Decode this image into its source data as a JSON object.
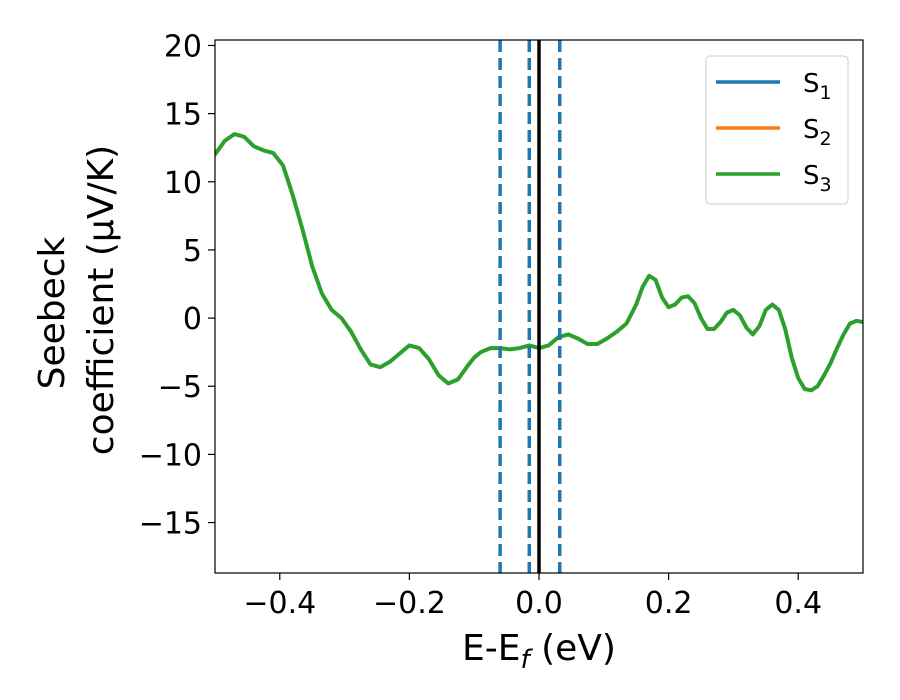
{
  "chart_data": {
    "type": "line",
    "xlabel": "E-E_f (eV)",
    "xlabel_main": "E-E",
    "xlabel_sub": "f",
    "xlabel_unit": " (eV)",
    "ylabel_line1": "Seebeck",
    "ylabel_line2": "coefficient  (μV/K)",
    "xlim": [
      -0.5,
      0.5
    ],
    "ylim": [
      -18.7,
      20.4
    ],
    "xticks": [
      -0.4,
      -0.2,
      0.0,
      0.2,
      0.4
    ],
    "xtick_labels": [
      "−0.4",
      "−0.2",
      "0.0",
      "0.2",
      "0.4"
    ],
    "yticks": [
      -15,
      -10,
      -5,
      0,
      5,
      10,
      15,
      20
    ],
    "ytick_labels": [
      "−15",
      "−10",
      "−5",
      "0",
      "5",
      "10",
      "15",
      "20"
    ],
    "grid": false,
    "legend_position": "top-right",
    "series": [
      {
        "name": "S1",
        "name_main": "S",
        "name_sub": "1",
        "color": "#1f77b4",
        "x": [],
        "y": []
      },
      {
        "name": "S2",
        "name_main": "S",
        "name_sub": "2",
        "color": "#ff7f0e",
        "x": [],
        "y": []
      },
      {
        "name": "S3",
        "name_main": "S",
        "name_sub": "3",
        "color": "#2ca02c",
        "x": [
          -0.5,
          -0.485,
          -0.47,
          -0.455,
          -0.44,
          -0.425,
          -0.41,
          -0.395,
          -0.38,
          -0.365,
          -0.35,
          -0.335,
          -0.32,
          -0.305,
          -0.29,
          -0.275,
          -0.26,
          -0.245,
          -0.23,
          -0.215,
          -0.2,
          -0.185,
          -0.17,
          -0.155,
          -0.14,
          -0.125,
          -0.11,
          -0.1,
          -0.09,
          -0.075,
          -0.06,
          -0.045,
          -0.03,
          -0.015,
          0.0,
          0.015,
          0.03,
          0.045,
          0.06,
          0.075,
          0.09,
          0.105,
          0.12,
          0.135,
          0.15,
          0.16,
          0.17,
          0.18,
          0.19,
          0.2,
          0.21,
          0.22,
          0.23,
          0.24,
          0.25,
          0.26,
          0.27,
          0.28,
          0.29,
          0.3,
          0.31,
          0.32,
          0.33,
          0.34,
          0.35,
          0.36,
          0.37,
          0.38,
          0.39,
          0.4,
          0.41,
          0.42,
          0.43,
          0.44,
          0.45,
          0.46,
          0.47,
          0.48,
          0.49,
          0.5
        ],
        "y": [
          12.0,
          13.0,
          13.5,
          13.3,
          12.6,
          12.3,
          12.1,
          11.2,
          9.0,
          6.5,
          3.8,
          1.8,
          0.6,
          0.0,
          -1.0,
          -2.3,
          -3.4,
          -3.6,
          -3.2,
          -2.6,
          -2.0,
          -2.2,
          -3.0,
          -4.2,
          -4.8,
          -4.5,
          -3.5,
          -2.9,
          -2.5,
          -2.2,
          -2.2,
          -2.3,
          -2.2,
          -2.0,
          -2.2,
          -2.0,
          -1.4,
          -1.2,
          -1.5,
          -1.9,
          -1.9,
          -1.5,
          -1.0,
          -0.4,
          1.0,
          2.3,
          3.1,
          2.8,
          1.5,
          0.8,
          1.0,
          1.5,
          1.6,
          1.1,
          0.0,
          -0.8,
          -0.8,
          -0.3,
          0.4,
          0.6,
          0.2,
          -0.7,
          -1.2,
          -0.6,
          0.6,
          1.0,
          0.6,
          -0.8,
          -2.9,
          -4.4,
          -5.2,
          -5.3,
          -5.0,
          -4.2,
          -3.3,
          -2.2,
          -1.2,
          -0.4,
          -0.2,
          -0.3
        ]
      }
    ],
    "vlines": [
      {
        "x": -0.06,
        "style": "dashed",
        "color": "#1f77b4"
      },
      {
        "x": -0.015,
        "style": "dashed",
        "color": "#1f77b4"
      },
      {
        "x": 0.0,
        "style": "solid",
        "color": "#000000"
      },
      {
        "x": 0.032,
        "style": "dashed",
        "color": "#1f77b4"
      }
    ]
  }
}
